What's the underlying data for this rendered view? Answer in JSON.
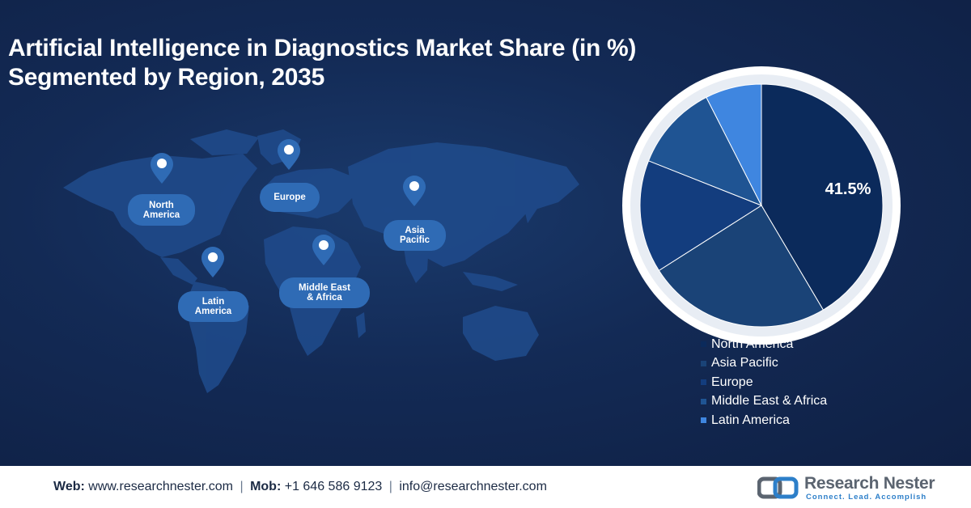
{
  "title": {
    "line1": "Artificial Intelligence in Diagnostics Market Share (in %)",
    "line2": "Segmented by Region, 2035"
  },
  "map_labels": [
    {
      "id": "north-america",
      "line1": "North",
      "line2": "America"
    },
    {
      "id": "europe",
      "line1": "Europe",
      "line2": ""
    },
    {
      "id": "asia-pacific",
      "line1": "Asia",
      "line2": "Pacific"
    },
    {
      "id": "latin-america",
      "line1": "Latin",
      "line2": "America"
    },
    {
      "id": "middle-east-africa",
      "line1": "Middle East",
      "line2": "& Africa"
    }
  ],
  "chart_data": {
    "type": "pie",
    "title": "Artificial Intelligence in Diagnostics Market Share (in %) Segmented by Region, 2035",
    "categories": [
      "North America",
      "Asia Pacific",
      "Europe",
      "Middle East & Africa",
      "Latin America"
    ],
    "values": [
      41.5,
      24.5,
      15.0,
      11.5,
      7.5
    ],
    "colors": [
      "#0b2a5b",
      "#1a4377",
      "#133d7e",
      "#1f5493",
      "#3f86e0"
    ],
    "data_labels": [
      "41.5%",
      "",
      "",
      "",
      ""
    ],
    "legend_position": "bottom-right"
  },
  "footer": {
    "web_label": "Web:",
    "web_value": "www.researchnester.com",
    "mob_label": "Mob:",
    "mob_value": "+1 646 586 9123",
    "email": "info@researchnester.com",
    "separator": "|",
    "logo_name": "Research Nester",
    "logo_tagline": "Connect. Lead. Accomplish"
  }
}
